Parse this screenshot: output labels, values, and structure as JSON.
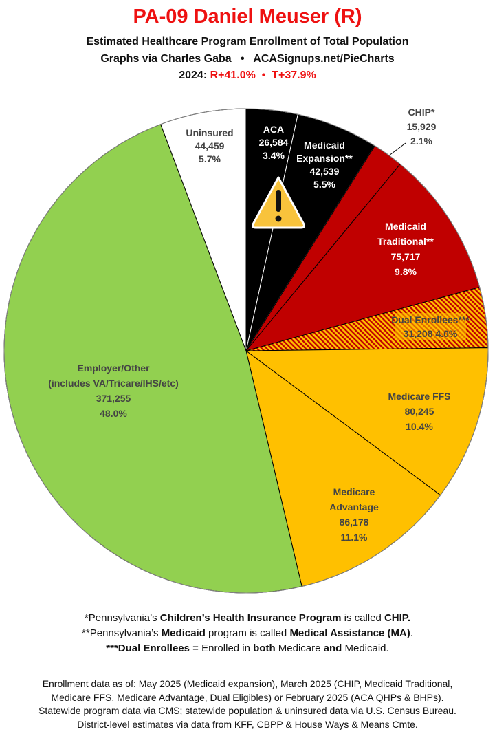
{
  "header": {
    "title": "PA-09 Daniel Meuser (R)",
    "subtitle": "Estimated Healthcare Program Enrollment of Total Population",
    "credit": "Graphs via Charles Gaba   •   ACASignups.net/PieCharts",
    "election_prefix": "2024: ",
    "election_result": "R+41.0%  •  T+37.9%"
  },
  "chart_data": {
    "type": "pie",
    "title": "PA-09 Daniel Meuser (R)",
    "start": "12 o'clock",
    "direction": "clockwise",
    "slices": [
      {
        "label": [
          "ACA"
        ],
        "value": 26584,
        "value_text": "26,584",
        "pct": "3.4%",
        "color": "#000000"
      },
      {
        "label": [
          "Medicaid",
          "Expansion**"
        ],
        "value": 42539,
        "value_text": "42,539",
        "pct": "5.5%",
        "color": "#000000"
      },
      {
        "label": [
          "CHIP*"
        ],
        "value": 15929,
        "value_text": "15,929",
        "pct": "2.1%",
        "color": "#c00000"
      },
      {
        "label": [
          "Medicaid",
          "Traditional**"
        ],
        "value": 75717,
        "value_text": "75,717",
        "pct": "9.8%",
        "color": "#c00000"
      },
      {
        "label": [
          "Dual Enrollees***"
        ],
        "value": 31208,
        "value_text": "31,208",
        "pct": "4.0%",
        "color": "hatch #c00000/#ffc000"
      },
      {
        "label": [
          "Medicare FFS"
        ],
        "value": 80245,
        "value_text": "80,245",
        "pct": "10.4%",
        "color": "#ffc000"
      },
      {
        "label": [
          "Medicare",
          "Advantage"
        ],
        "value": 86178,
        "value_text": "86,178",
        "pct": "11.1%",
        "color": "#ffc000"
      },
      {
        "label": [
          "Employer/Other",
          "(includes VA/Tricare/IHS/etc)"
        ],
        "value": 371255,
        "value_text": "371,255",
        "pct": "48.0%",
        "color": "#92d050"
      },
      {
        "label": [
          "Uninsured"
        ],
        "value": 44459,
        "value_text": "44,459",
        "pct": "5.7%",
        "color": "#ffffff"
      }
    ],
    "annotation_icon": "warning-triangle-icon"
  },
  "footnotes": [
    [
      {
        "t": "*Pennsylvania’s "
      },
      {
        "t": "Children’s Health Insurance Program",
        "b": true
      },
      {
        "t": " is called "
      },
      {
        "t": "CHIP.",
        "b": true
      }
    ],
    [
      {
        "t": "**Pennsylvania’s "
      },
      {
        "t": "Medicaid",
        "b": true
      },
      {
        "t": " program is called "
      },
      {
        "t": "Medical Assistance (MA)",
        "b": true
      },
      {
        "t": "."
      }
    ],
    [
      {
        "t": "***Dual Enrollees",
        "b": true
      },
      {
        "t": " = Enrolled in "
      },
      {
        "t": "both",
        "b": true
      },
      {
        "t": " Medicare "
      },
      {
        "t": "and",
        "b": true
      },
      {
        "t": " Medicaid."
      }
    ]
  ],
  "sources": [
    "Enrollment data as of: May 2025 (Medicaid expansion), March 2025 (CHIP, Medicaid Traditional,",
    "Medicare FFS, Medicare Advantage, Dual Eligibles) or February 2025 (ACA QHPs & BHPs).",
    "Statewide program data via CMS; statewide population & uninsured data via U.S. Census Bureau.",
    "District-level estimates via data from KFF, CBPP & House Ways & Means Cmte."
  ]
}
